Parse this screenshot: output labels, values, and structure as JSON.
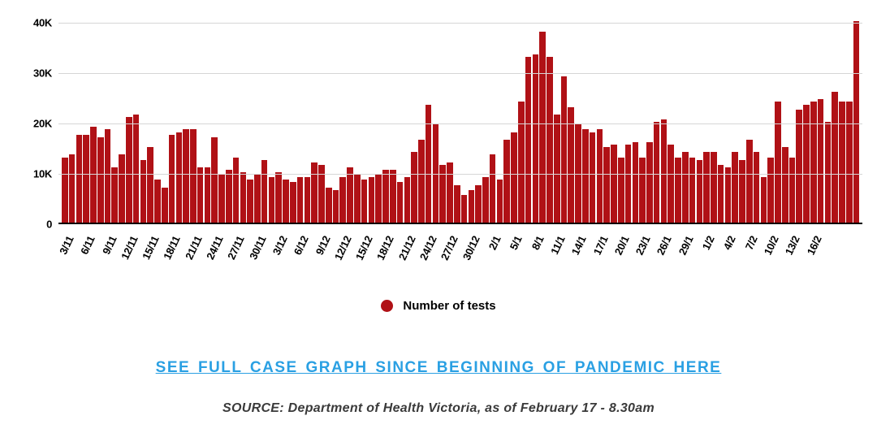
{
  "chart": {
    "type": "bar",
    "bar_color": "#b01116",
    "background_color": "#ffffff",
    "grid_color": "#d6d6d6",
    "axis_color": "#000000",
    "ylim": [
      0,
      42000
    ],
    "ytick_values": [
      0,
      10000,
      20000,
      30000,
      40000
    ],
    "ytick_labels": [
      "0",
      "10K",
      "20K",
      "30K",
      "40K"
    ],
    "tick_fontsize": 13,
    "tick_fontweight": 700,
    "xtick_rotation_deg": -65,
    "xtick_every": 3,
    "xtick_labels": [
      "3/11",
      "6/11",
      "9/11",
      "12/11",
      "15/11",
      "18/11",
      "21/11",
      "24/11",
      "27/11",
      "30/11",
      "3/12",
      "6/12",
      "9/12",
      "12/12",
      "15/12",
      "18/12",
      "21/12",
      "24/12",
      "27/12",
      "30/12",
      "2/1",
      "5/1",
      "8/1",
      "11/1",
      "14/1",
      "17/1",
      "20/1",
      "23/1",
      "26/1",
      "29/1",
      "1/2",
      "4/2",
      "7/2",
      "10/2",
      "13/2",
      "16/2"
    ],
    "values": [
      13000,
      13500,
      17500,
      17500,
      19000,
      17000,
      18500,
      11000,
      13500,
      21000,
      21500,
      12500,
      15000,
      8500,
      7000,
      17500,
      18000,
      18500,
      18500,
      11000,
      11000,
      17000,
      9500,
      10500,
      13000,
      10000,
      8500,
      9500,
      12500,
      9000,
      10000,
      8500,
      8000,
      9000,
      9000,
      12000,
      11500,
      7000,
      6500,
      9000,
      11000,
      9500,
      8500,
      9000,
      9500,
      10500,
      10500,
      8000,
      9000,
      14000,
      16500,
      23500,
      19500,
      11500,
      12000,
      7500,
      5500,
      6500,
      7500,
      9000,
      13500,
      8500,
      16500,
      18000,
      24000,
      33000,
      33500,
      38000,
      33000,
      21500,
      29000,
      23000,
      19500,
      18500,
      18000,
      18500,
      15000,
      15500,
      13000,
      15500,
      16000,
      13000,
      16000,
      20000,
      20500,
      15500,
      13000,
      14000,
      13000,
      12500,
      14000,
      14000,
      11500,
      11000,
      14000,
      12500,
      16500,
      14000,
      9000,
      13000,
      24000,
      15000,
      13000,
      22500,
      23500,
      24000,
      24500,
      20000,
      26000,
      24000,
      24000,
      40000
    ],
    "legend": {
      "label": "Number of tests",
      "dot_color": "#b01116",
      "fontsize": 15,
      "fontweight": 700
    }
  },
  "link": {
    "text": "SEE FULL CASE GRAPH SINCE BEGINNING OF PANDEMIC HERE",
    "color": "#2aa0e3",
    "fontsize": 19,
    "fontweight": 800
  },
  "source": {
    "text": "SOURCE: Department of Health Victoria, as of February 17 - 8.30am",
    "color": "#3a3a3a",
    "fontsize": 16,
    "font_style": "italic"
  }
}
